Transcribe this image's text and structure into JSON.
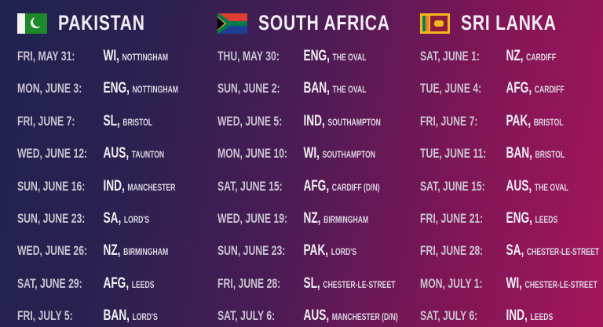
{
  "teams": [
    {
      "name": "PAKISTAN",
      "flag": "pakistan-flag",
      "fixtures": [
        {
          "date": "FRI, MAY 31:",
          "opponent": "WI,",
          "venue": "NOTTINGHAM"
        },
        {
          "date": "MON, JUNE 3:",
          "opponent": "ENG,",
          "venue": "NOTTINGHAM"
        },
        {
          "date": "FRI, JUNE 7:",
          "opponent": "SL,",
          "venue": "BRISTOL"
        },
        {
          "date": "WED, JUNE 12:",
          "opponent": "AUS,",
          "venue": "TAUNTON"
        },
        {
          "date": "SUN, JUNE 16:",
          "opponent": "IND,",
          "venue": "MANCHESTER"
        },
        {
          "date": "SUN, JUNE 23:",
          "opponent": "SA,",
          "venue": "LORD'S"
        },
        {
          "date": "WED, JUNE 26:",
          "opponent": "NZ,",
          "venue": "BIRMINGHAM"
        },
        {
          "date": "SAT, JUNE 29:",
          "opponent": "AFG,",
          "venue": "LEEDS"
        },
        {
          "date": "FRI, JULY 5:",
          "opponent": "BAN,",
          "venue": "LORD'S"
        }
      ]
    },
    {
      "name": "SOUTH AFRICA",
      "flag": "south-africa-flag",
      "fixtures": [
        {
          "date": "THU, MAY 30:",
          "opponent": "ENG,",
          "venue": "THE OVAL"
        },
        {
          "date": "SUN, JUNE 2:",
          "opponent": "BAN,",
          "venue": "THE OVAL"
        },
        {
          "date": "WED, JUNE 5:",
          "opponent": "IND,",
          "venue": "SOUTHAMPTON"
        },
        {
          "date": "MON, JUNE 10:",
          "opponent": "WI,",
          "venue": "SOUTHAMPTON"
        },
        {
          "date": "SAT, JUNE 15:",
          "opponent": "AFG,",
          "venue": "CARDIFF (D/N)"
        },
        {
          "date": "WED, JUNE 19:",
          "opponent": "NZ,",
          "venue": "BIRMINGHAM"
        },
        {
          "date": "SUN, JUNE 23:",
          "opponent": "PAK,",
          "venue": "LORD'S"
        },
        {
          "date": "FRI, JUNE 28:",
          "opponent": "SL,",
          "venue": "CHESTER-LE-STREET"
        },
        {
          "date": "SAT, JULY 6:",
          "opponent": "AUS,",
          "venue": "MANCHESTER (D/N)"
        }
      ]
    },
    {
      "name": "SRI LANKA",
      "flag": "sri-lanka-flag",
      "fixtures": [
        {
          "date": "SAT, JUNE 1:",
          "opponent": "NZ,",
          "venue": "CARDIFF"
        },
        {
          "date": "TUE, JUNE 4:",
          "opponent": "AFG,",
          "venue": "CARDIFF"
        },
        {
          "date": "FRI, JUNE 7:",
          "opponent": "PAK,",
          "venue": "BRISTOL"
        },
        {
          "date": "TUE, JUNE 11:",
          "opponent": "BAN,",
          "venue": "BRISTOL"
        },
        {
          "date": "SAT, JUNE 15:",
          "opponent": "AUS,",
          "venue": "THE OVAL"
        },
        {
          "date": "FRI, JUNE 21:",
          "opponent": "ENG,",
          "venue": "LEEDS"
        },
        {
          "date": "FRI, JUNE 28:",
          "opponent": "SA,",
          "venue": "CHESTER-LE-STREET"
        },
        {
          "date": "MON, JULY 1:",
          "opponent": "WI,",
          "venue": "CHESTER-LE-STREET"
        },
        {
          "date": "SAT, JULY 6:",
          "opponent": "IND,",
          "venue": "LEEDS"
        }
      ]
    }
  ]
}
